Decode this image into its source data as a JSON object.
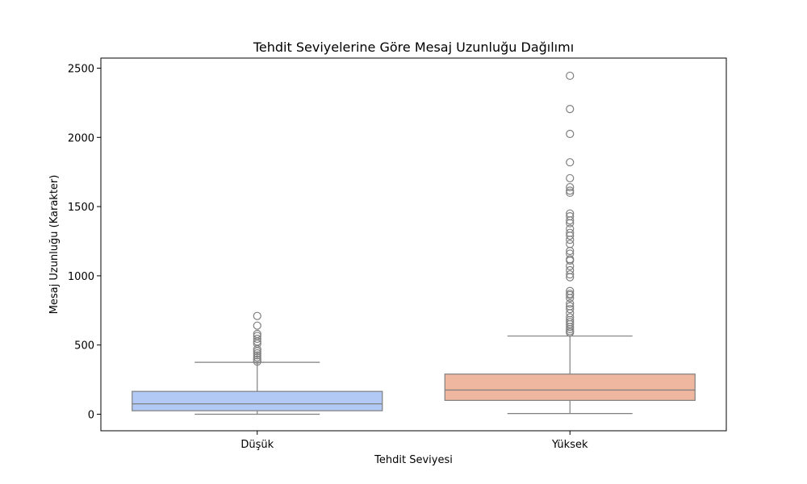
{
  "chart_data": {
    "type": "box",
    "title": "Tehdit Seviyelerine Göre Mesaj Uzunluğu Dağılımı",
    "xlabel": "Tehdit Seviyesi",
    "ylabel": "Mesaj Uzunluğu (Karakter)",
    "ylim": [
      -120,
      2560
    ],
    "yticks": [
      0,
      500,
      1000,
      1500,
      2000,
      2500
    ],
    "grid": false,
    "categories": [
      "Düşük",
      "Yüksek"
    ],
    "colors": {
      "Düşük": "#b3c9f5",
      "Yüksek": "#efb7a0",
      "line": "#7f7f7f"
    },
    "boxes": [
      {
        "name": "Düşük",
        "whisker_low": 0,
        "q1": 25,
        "median": 75,
        "q3": 165,
        "whisker_high": 375,
        "outliers": [
          380,
          395,
          410,
          425,
          440,
          455,
          470,
          510,
          525,
          545,
          565,
          580,
          640,
          710
        ]
      },
      {
        "name": "Yüksek",
        "whisker_low": 5,
        "q1": 100,
        "median": 175,
        "q3": 290,
        "whisker_high": 565,
        "outliers": [
          590,
          600,
          615,
          630,
          650,
          665,
          680,
          700,
          730,
          760,
          780,
          800,
          840,
          860,
          870,
          890,
          990,
          1010,
          1040,
          1070,
          1110,
          1120,
          1160,
          1180,
          1230,
          1260,
          1290,
          1310,
          1340,
          1380,
          1400,
          1430,
          1450,
          1600,
          1615,
          1640,
          1705,
          1820,
          2025,
          2205,
          2445
        ]
      }
    ]
  }
}
